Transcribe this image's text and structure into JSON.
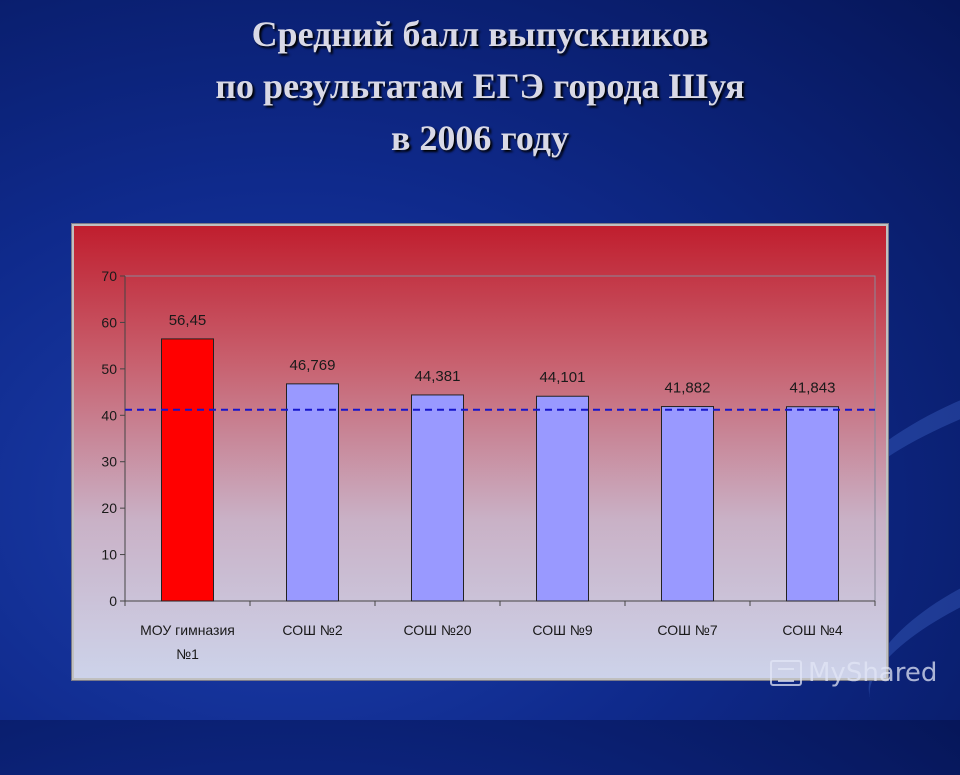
{
  "title": {
    "line1": "Средний балл выпускников",
    "line2": "по результатам ЕГЭ города Шуя",
    "line3": "в 2006 году"
  },
  "chart_data": {
    "type": "bar",
    "categories": [
      [
        "МОУ гимназия",
        "№1"
      ],
      [
        "СОШ №2"
      ],
      [
        "СОШ №20"
      ],
      [
        "СОШ №9"
      ],
      [
        "СОШ №7"
      ],
      [
        "СОШ №4"
      ]
    ],
    "values": [
      56.45,
      46.769,
      44.381,
      44.101,
      41.882,
      41.843
    ],
    "value_labels": [
      "56,45",
      "46,769",
      "44,381",
      "44,101",
      "41,882",
      "41,843"
    ],
    "bar_colors": [
      "#ff0000",
      "#9999ff",
      "#9999ff",
      "#9999ff",
      "#9999ff",
      "#9999ff"
    ],
    "ylim": [
      0,
      70
    ],
    "yticks": [
      0,
      10,
      20,
      30,
      40,
      50,
      60,
      70
    ],
    "reference_line": {
      "value": 41.2,
      "color": "#1515cc",
      "style": "dashed"
    },
    "grid": false,
    "legend": "none"
  },
  "watermark": {
    "text": "MyShared"
  }
}
